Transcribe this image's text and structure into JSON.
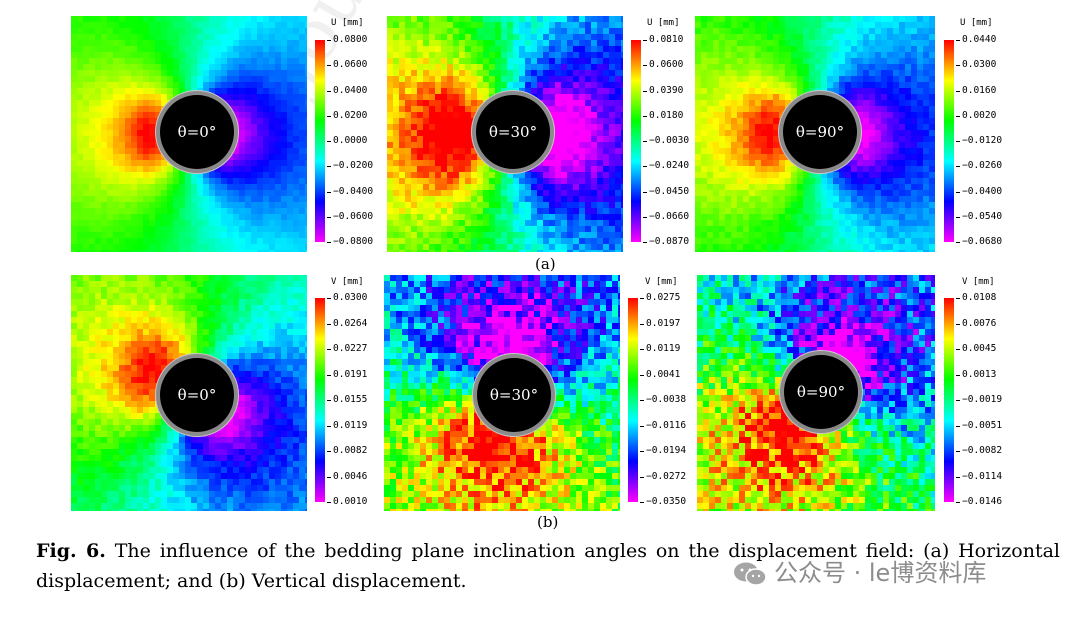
{
  "figure": {
    "subfigure_labels": {
      "a": "(a)",
      "b": "(b)"
    },
    "caption_bold": "Fig. 6.",
    "caption_text": " The influence of the bedding plane inclination angles on the displacement field: (a) Horizontal displacement; and (b) Vertical displacement."
  },
  "watermark": {
    "text": "公众号 · le博资料库",
    "background_text": "Journal Pre"
  },
  "panels": [
    {
      "id": "a1",
      "row": "a",
      "angle_label": "θ=0°",
      "colorbar_title": "U [mm]",
      "mode": "h0",
      "ticks": [
        "0.0800",
        "0.0600",
        "0.0400",
        "0.0200",
        "0.0000",
        "−0.0200",
        "−0.0400",
        "−0.0600",
        "−0.0800"
      ]
    },
    {
      "id": "a2",
      "row": "a",
      "angle_label": "θ=30°",
      "colorbar_title": "U [mm]",
      "mode": "h30",
      "ticks": [
        "0.0810",
        "0.0600",
        "0.0390",
        "0.0180",
        "−0.0030",
        "−0.0240",
        "−0.0450",
        "−0.0660",
        "−0.0870"
      ]
    },
    {
      "id": "a3",
      "row": "a",
      "angle_label": "θ=90°",
      "colorbar_title": "U [mm]",
      "mode": "h90",
      "ticks": [
        "0.0440",
        "0.0300",
        "0.0160",
        "0.0020",
        "−0.0120",
        "−0.0260",
        "−0.0400",
        "−0.0540",
        "−0.0680"
      ]
    },
    {
      "id": "b1",
      "row": "b",
      "angle_label": "θ=0°",
      "colorbar_title": "V [mm]",
      "mode": "v0",
      "ticks": [
        "0.0300",
        "0.0264",
        "0.0227",
        "0.0191",
        "0.0155",
        "0.0119",
        "0.0082",
        "0.0046",
        "0.0010"
      ]
    },
    {
      "id": "b2",
      "row": "b",
      "angle_label": "θ=30°",
      "colorbar_title": "V [mm]",
      "mode": "v30",
      "ticks": [
        "0.0275",
        "0.0197",
        "0.0119",
        "0.0041",
        "−0.0038",
        "−0.0116",
        "−0.0194",
        "−0.0272",
        "−0.0350"
      ]
    },
    {
      "id": "b3",
      "row": "b",
      "angle_label": "θ=90°",
      "colorbar_title": "V [mm]",
      "mode": "v90",
      "ticks": [
        "0.0108",
        "0.0076",
        "0.0045",
        "0.0013",
        "−0.0019",
        "−0.0051",
        "−0.0082",
        "−0.0114",
        "−0.0146"
      ]
    }
  ],
  "colors": {
    "cmap": [
      "#ff00ff",
      "#8000ff",
      "#0000ff",
      "#0080ff",
      "#00ffff",
      "#00ff80",
      "#00ff00",
      "#80ff00",
      "#ffff00",
      "#ff8000",
      "#ff0000"
    ]
  }
}
